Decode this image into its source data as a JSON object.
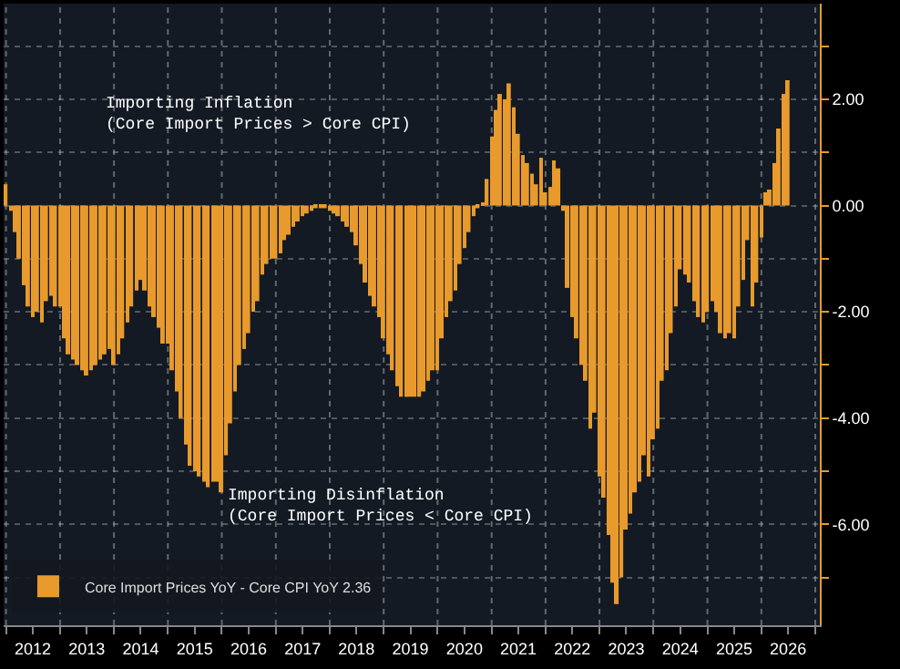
{
  "chart_data": {
    "type": "bar",
    "annotations": [
      "Importing Inflation\n(Core Import Prices > Core CPI)",
      "Importing Disinflation\n(Core Import Prices < Core CPI)"
    ],
    "x": [
      "2012-01",
      "2012-02",
      "2012-03",
      "2012-04",
      "2012-05",
      "2012-06",
      "2012-07",
      "2012-08",
      "2012-09",
      "2012-10",
      "2012-11",
      "2012-12",
      "2013-01",
      "2013-02",
      "2013-03",
      "2013-04",
      "2013-05",
      "2013-06",
      "2013-07",
      "2013-08",
      "2013-09",
      "2013-10",
      "2013-11",
      "2013-12",
      "2014-01",
      "2014-02",
      "2014-03",
      "2014-04",
      "2014-05",
      "2014-06",
      "2014-07",
      "2014-08",
      "2014-09",
      "2014-10",
      "2014-11",
      "2014-12",
      "2015-01",
      "2015-02",
      "2015-03",
      "2015-04",
      "2015-05",
      "2015-06",
      "2015-07",
      "2015-08",
      "2015-09",
      "2015-10",
      "2015-11",
      "2015-12",
      "2016-01",
      "2016-02",
      "2016-03",
      "2016-04",
      "2016-05",
      "2016-06",
      "2016-07",
      "2016-08",
      "2016-09",
      "2016-10",
      "2016-11",
      "2016-12",
      "2017-01",
      "2017-02",
      "2017-03",
      "2017-04",
      "2017-05",
      "2017-06",
      "2017-07",
      "2017-08",
      "2017-09",
      "2017-10",
      "2017-11",
      "2017-12",
      "2018-01",
      "2018-02",
      "2018-03",
      "2018-04",
      "2018-05",
      "2018-06",
      "2018-07",
      "2018-08",
      "2018-09",
      "2018-10",
      "2018-11",
      "2018-12",
      "2019-01",
      "2019-02",
      "2019-03",
      "2019-04",
      "2019-05",
      "2019-06",
      "2019-07",
      "2019-08",
      "2019-09",
      "2019-10",
      "2019-11",
      "2019-12",
      "2020-01",
      "2020-02",
      "2020-03",
      "2020-04",
      "2020-05",
      "2020-06",
      "2020-07",
      "2020-08",
      "2020-09",
      "2020-10",
      "2020-11",
      "2020-12",
      "2021-01",
      "2021-02",
      "2021-03",
      "2021-04",
      "2021-05",
      "2021-06",
      "2021-07",
      "2021-08",
      "2021-09",
      "2021-10",
      "2021-11",
      "2021-12",
      "2022-01",
      "2022-02",
      "2022-03",
      "2022-04",
      "2022-05",
      "2022-06",
      "2022-07",
      "2022-08",
      "2022-09",
      "2022-10",
      "2022-11",
      "2022-12",
      "2023-01",
      "2023-02",
      "2023-03",
      "2023-04",
      "2023-05",
      "2023-06",
      "2023-07",
      "2023-08",
      "2023-09",
      "2023-10",
      "2023-11",
      "2023-12",
      "2024-01",
      "2024-02",
      "2024-03",
      "2024-04",
      "2024-05",
      "2024-06",
      "2024-07",
      "2024-08",
      "2024-09",
      "2024-10",
      "2024-11",
      "2024-12",
      "2025-01",
      "2025-02",
      "2025-03",
      "2025-04",
      "2025-05",
      "2025-06",
      "2025-07",
      "2025-08",
      "2025-09",
      "2025-10",
      "2025-11",
      "2025-12",
      "2026-01",
      "2026-02",
      "2026-03",
      "2026-04",
      "2026-05",
      "2026-06",
      "2026-07"
    ],
    "series": [
      {
        "name": "Core Import Prices YoY - Core CPI YoY 2.36",
        "color": "#e89a2c",
        "values": [
          0.4,
          -0.1,
          -0.5,
          -1.0,
          -1.5,
          -1.9,
          -2.1,
          -2.0,
          -2.2,
          -1.8,
          -1.7,
          -1.9,
          -1.9,
          -2.5,
          -2.8,
          -2.9,
          -3.0,
          -3.1,
          -3.2,
          -3.1,
          -3.0,
          -2.9,
          -2.8,
          -2.7,
          -3.0,
          -2.8,
          -2.5,
          -2.2,
          -1.9,
          -1.6,
          -1.4,
          -1.6,
          -1.9,
          -2.1,
          -2.3,
          -2.6,
          -2.6,
          -3.1,
          -3.5,
          -4.0,
          -4.5,
          -4.9,
          -5.0,
          -5.1,
          -5.2,
          -5.3,
          -5.2,
          -5.2,
          -5.4,
          -4.7,
          -4.1,
          -3.5,
          -3.0,
          -2.7,
          -2.4,
          -2.0,
          -1.8,
          -1.3,
          -1.1,
          -1.0,
          -1.0,
          -0.9,
          -0.65,
          -0.55,
          -0.4,
          -0.3,
          -0.2,
          -0.15,
          -0.1,
          -0.05,
          -0.05,
          -0.05,
          -0.1,
          -0.15,
          -0.2,
          -0.3,
          -0.4,
          -0.5,
          -0.75,
          -1.1,
          -1.45,
          -1.7,
          -1.9,
          -2.1,
          -2.5,
          -2.8,
          -3.1,
          -3.4,
          -3.6,
          -3.6,
          -3.6,
          -3.6,
          -3.6,
          -3.5,
          -3.3,
          -3.1,
          -3.1,
          -2.5,
          -2.1,
          -1.8,
          -1.6,
          -1.1,
          -0.8,
          -0.5,
          -0.2,
          -0.05,
          0.05,
          0.5,
          1.3,
          1.8,
          2.1,
          2.0,
          2.3,
          1.85,
          1.35,
          0.95,
          0.8,
          0.6,
          0.4,
          0.9,
          0.25,
          0.35,
          0.85,
          0.7,
          -0.1,
          -1.55,
          -2.1,
          -2.5,
          -3.0,
          -3.3,
          -4.2,
          -3.9,
          -5.1,
          -5.5,
          -6.2,
          -7.1,
          -7.5,
          -7.0,
          -6.1,
          -5.8,
          -5.4,
          -5.2,
          -4.7,
          -5.1,
          -4.4,
          -4.2,
          -3.3,
          -3.1,
          -2.4,
          -1.9,
          -1.2,
          -1.3,
          -1.45,
          -1.8,
          -2.1,
          -2.2,
          -2.0,
          -1.8,
          -2.0,
          -2.4,
          -2.5,
          -2.4,
          -2.5,
          -1.9,
          -1.4,
          -0.65,
          -1.9,
          -1.45,
          -0.6,
          0.25,
          0.3,
          0.8,
          1.45,
          2.1,
          2.36
        ]
      }
    ],
    "xlim": [
      "2011-12-16",
      "2027-02-01"
    ],
    "xticks": [
      {
        "value": "2012-01-01",
        "label": null
      },
      {
        "value": "2012-07-01",
        "label": "2012"
      },
      {
        "value": "2013-01-01",
        "label": null
      },
      {
        "value": "2013-07-01",
        "label": "2013"
      },
      {
        "value": "2014-01-01",
        "label": null
      },
      {
        "value": "2014-07-01",
        "label": "2014"
      },
      {
        "value": "2015-01-01",
        "label": null
      },
      {
        "value": "2015-07-01",
        "label": "2015"
      },
      {
        "value": "2016-01-01",
        "label": null
      },
      {
        "value": "2016-07-01",
        "label": "2016"
      },
      {
        "value": "2017-01-01",
        "label": null
      },
      {
        "value": "2017-07-01",
        "label": "2017"
      },
      {
        "value": "2018-01-01",
        "label": null
      },
      {
        "value": "2018-07-01",
        "label": "2018"
      },
      {
        "value": "2019-01-01",
        "label": null
      },
      {
        "value": "2019-07-01",
        "label": "2019"
      },
      {
        "value": "2020-01-01",
        "label": null
      },
      {
        "value": "2020-07-01",
        "label": "2020"
      },
      {
        "value": "2021-01-01",
        "label": null
      },
      {
        "value": "2021-07-01",
        "label": "2021"
      },
      {
        "value": "2022-01-01",
        "label": null
      },
      {
        "value": "2022-07-01",
        "label": "2022"
      },
      {
        "value": "2023-01-01",
        "label": null
      },
      {
        "value": "2023-07-01",
        "label": "2023"
      },
      {
        "value": "2024-01-01",
        "label": null
      },
      {
        "value": "2024-07-01",
        "label": "2024"
      },
      {
        "value": "2025-01-01",
        "label": null
      },
      {
        "value": "2025-07-01",
        "label": "2025"
      },
      {
        "value": "2026-01-01",
        "label": null
      },
      {
        "value": "2026-07-01",
        "label": "2026"
      },
      {
        "value": "2027-01-01",
        "label": null
      }
    ],
    "ylim": [
      -7.9,
      3.8
    ],
    "yticks": [
      {
        "value": 3,
        "label": null
      },
      {
        "value": 2,
        "label": "2.00"
      },
      {
        "value": 1,
        "label": null
      },
      {
        "value": 0,
        "label": "0.00"
      },
      {
        "value": -1,
        "label": null
      },
      {
        "value": -2,
        "label": "-2.00"
      },
      {
        "value": -3,
        "label": null
      },
      {
        "value": -4,
        "label": "-4.00"
      },
      {
        "value": -5,
        "label": null
      },
      {
        "value": -6,
        "label": "-6.00"
      },
      {
        "value": -7,
        "label": null
      }
    ],
    "grid": true,
    "legend": "bottom left"
  }
}
